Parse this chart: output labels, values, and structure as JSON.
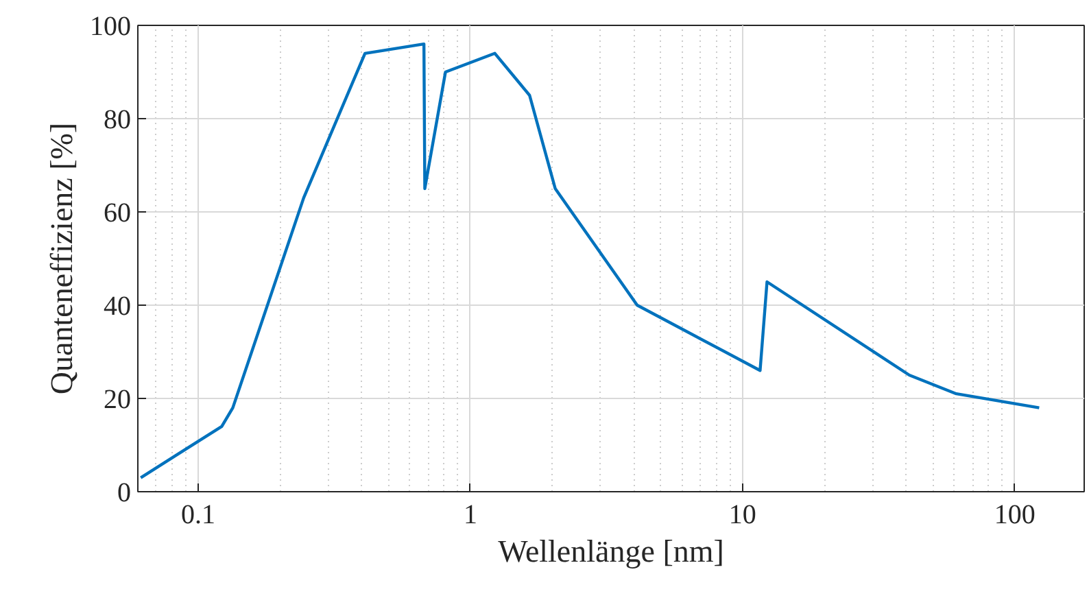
{
  "chart_data": {
    "type": "line",
    "xlabel": "Wellenlänge [nm]",
    "ylabel": "Quanteneffizienz [%]",
    "log": "x",
    "grid": true,
    "marker": "none",
    "line_style": "solid",
    "xlim": [
      0.06,
      180
    ],
    "ylim": [
      0,
      100
    ],
    "xticks": [
      0.1,
      1,
      10,
      100
    ],
    "yticks": [
      0,
      20,
      40,
      60,
      80,
      100
    ],
    "series": [
      {
        "color": "#0072bd",
        "x": [
          0.0615,
          0.122,
          0.134,
          0.244,
          0.41,
          0.675,
          0.68,
          0.81,
          1.23,
          1.65,
          2.05,
          4.1,
          11.6,
          12.3,
          41,
          61,
          123
        ],
        "values": [
          3,
          14,
          18,
          63,
          94,
          96,
          65,
          90,
          94,
          85,
          65,
          40,
          26,
          45,
          25,
          21,
          18
        ]
      }
    ]
  }
}
